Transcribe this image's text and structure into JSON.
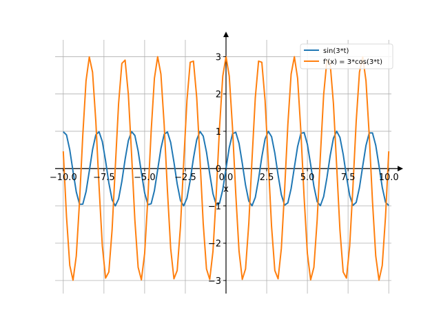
{
  "chart_data": {
    "type": "line",
    "title": "",
    "xlabel": "x",
    "ylabel": "",
    "xlim": [
      -10.5,
      10.5
    ],
    "ylim": [
      -3.35,
      3.45
    ],
    "x_ticks": [
      -10.0,
      -7.5,
      -5.0,
      -2.5,
      0.0,
      2.5,
      5.0,
      7.5,
      10.0
    ],
    "x_tick_labels": [
      "−10.0",
      "−7.5",
      "−5.0",
      "−2.5",
      "0.0",
      "2.5",
      "5.0",
      "7.5",
      "10.0"
    ],
    "y_ticks": [
      -3,
      -2,
      -1,
      0,
      1,
      2,
      3
    ],
    "y_tick_labels": [
      "−3",
      "−2",
      "−1",
      "0",
      "1",
      "2",
      "3"
    ],
    "grid": true,
    "legend_position": "top-right",
    "x_domain": [
      -10,
      10
    ],
    "series": [
      {
        "name": "sin(3*t)",
        "color": "#1f77b4",
        "expression": "sin(3*x)"
      },
      {
        "name": "f'(x) = 3*cos(3*t)",
        "color": "#ff7f0e",
        "expression": "3*cos(3*x)"
      }
    ]
  }
}
